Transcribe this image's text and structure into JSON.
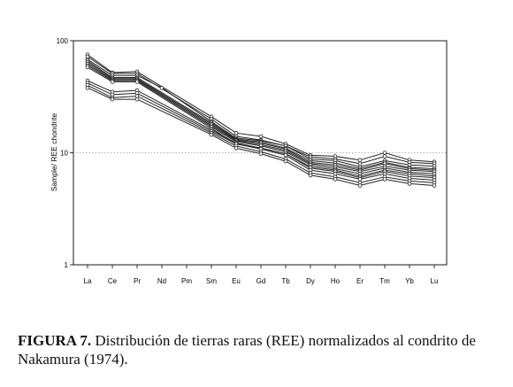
{
  "chart_data": {
    "type": "line",
    "ylabel": "Sample/ REE chondrite",
    "yscale": "log",
    "ylim": [
      1,
      100
    ],
    "y_ticks": [
      "1",
      "10",
      "100"
    ],
    "reference_line_y": 10,
    "categories": [
      "La",
      "Ce",
      "Pr",
      "Nd",
      "Pm",
      "Sm",
      "Eu",
      "Gd",
      "Tb",
      "Dy",
      "Ho",
      "Er",
      "Tm",
      "Yb",
      "Lu"
    ],
    "series": [
      {
        "values": [
          75,
          52,
          53,
          null,
          null,
          21,
          15,
          14,
          12,
          9.5,
          9.3,
          8.6,
          10,
          8.6,
          8.3
        ]
      },
      {
        "values": [
          72,
          51,
          51,
          null,
          null,
          20,
          14,
          13,
          11.5,
          9.2,
          8.8,
          8,
          9.3,
          8.2,
          8
        ]
      },
      {
        "values": [
          68,
          49,
          49,
          38,
          null,
          19,
          13.5,
          12.8,
          11.5,
          8.8,
          8.5,
          7.5,
          8.5,
          7.8,
          7.6
        ]
      },
      {
        "values": [
          66,
          47,
          47,
          null,
          null,
          18.5,
          13.2,
          12.5,
          11,
          8.5,
          8.1,
          7.2,
          8.2,
          7.4,
          7.2
        ]
      },
      {
        "values": [
          64,
          46,
          46,
          null,
          null,
          18,
          13,
          12.2,
          10.8,
          8.2,
          7.8,
          7,
          8,
          7.2,
          7
        ]
      },
      {
        "values": [
          62,
          45,
          45,
          null,
          null,
          17.5,
          12.8,
          11.8,
          10.5,
          8,
          7.5,
          6.8,
          7.6,
          7,
          6.8
        ]
      },
      {
        "values": [
          60,
          44,
          44,
          null,
          null,
          17,
          12.5,
          11.5,
          10.2,
          7.8,
          7.2,
          6.5,
          7.3,
          6.7,
          6.5
        ]
      },
      {
        "values": [
          58,
          43,
          43,
          null,
          null,
          16.5,
          12,
          11,
          9.8,
          7.5,
          7,
          6.2,
          7,
          6.5,
          6.2
        ]
      },
      {
        "values": [
          44,
          35,
          36,
          null,
          null,
          16,
          12.2,
          11,
          9.8,
          7.3,
          6.8,
          6,
          6.8,
          6.2,
          6
        ]
      },
      {
        "values": [
          42,
          33,
          34,
          null,
          null,
          15.5,
          12,
          10.8,
          9.5,
          7,
          6.5,
          5.8,
          6.5,
          5.9,
          5.7
        ]
      },
      {
        "values": [
          40,
          31,
          32,
          null,
          null,
          15,
          11.5,
          10.2,
          8.8,
          6.6,
          6.1,
          5.4,
          6.1,
          5.6,
          5.4
        ]
      },
      {
        "values": [
          38,
          30,
          30,
          null,
          null,
          14.5,
          11,
          9.8,
          8.4,
          6.3,
          5.8,
          5.1,
          5.8,
          5.3,
          5.1
        ]
      }
    ]
  },
  "caption": {
    "label": "FIGURA 7.",
    "text": " Distribución de tierras raras (REE) normalizados al condrito de Nakamura (1974)."
  }
}
